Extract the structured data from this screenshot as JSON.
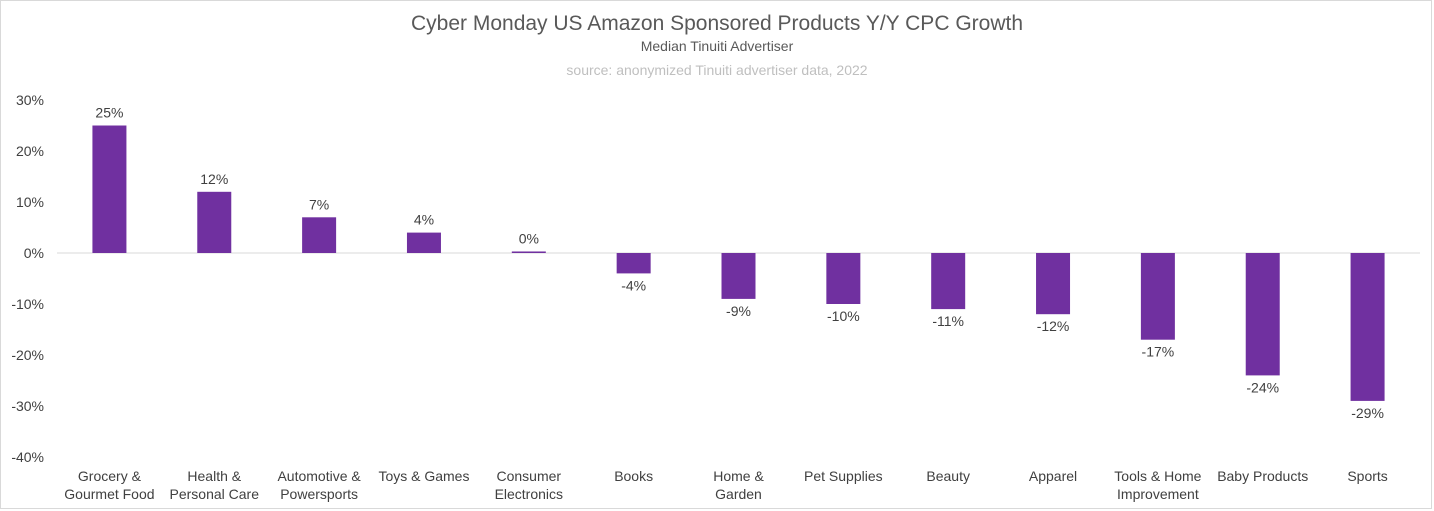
{
  "chart_data": {
    "type": "bar",
    "title": "Cyber Monday US Amazon Sponsored Products Y/Y CPC Growth",
    "subtitle": "Median Tinuiti Advertiser",
    "source": "source: anonymized Tinuiti advertiser data, 2022",
    "categories": [
      [
        "Grocery &",
        "Gourmet Food"
      ],
      [
        "Health &",
        "Personal Care"
      ],
      [
        "Automotive &",
        "Powersports"
      ],
      [
        "Toys & Games"
      ],
      [
        "Consumer",
        "Electronics"
      ],
      [
        "Books"
      ],
      [
        "Home &",
        "Garden"
      ],
      [
        "Pet Supplies"
      ],
      [
        "Beauty"
      ],
      [
        "Apparel"
      ],
      [
        "Tools & Home",
        "Improvement"
      ],
      [
        "Baby Products"
      ],
      [
        "Sports"
      ]
    ],
    "values": [
      25,
      12,
      7,
      4,
      0.3,
      -4,
      -9,
      -10,
      -11,
      -12,
      -17,
      -24,
      -29
    ],
    "data_labels": [
      "25%",
      "12%",
      "7%",
      "4%",
      "0%",
      "-4%",
      "-9%",
      "-10%",
      "-11%",
      "-12%",
      "-17%",
      "-24%",
      "-29%"
    ],
    "ylim": [
      -40,
      30
    ],
    "yticks": [
      30,
      20,
      10,
      0,
      -10,
      -20,
      -30,
      -40
    ],
    "ytick_labels": [
      "30%",
      "20%",
      "10%",
      "0%",
      "-10%",
      "-20%",
      "-30%",
      "-40%"
    ],
    "bar_color": "#7030a0",
    "axis_color": "#d9d9d9",
    "grid": false,
    "legend": "none"
  }
}
